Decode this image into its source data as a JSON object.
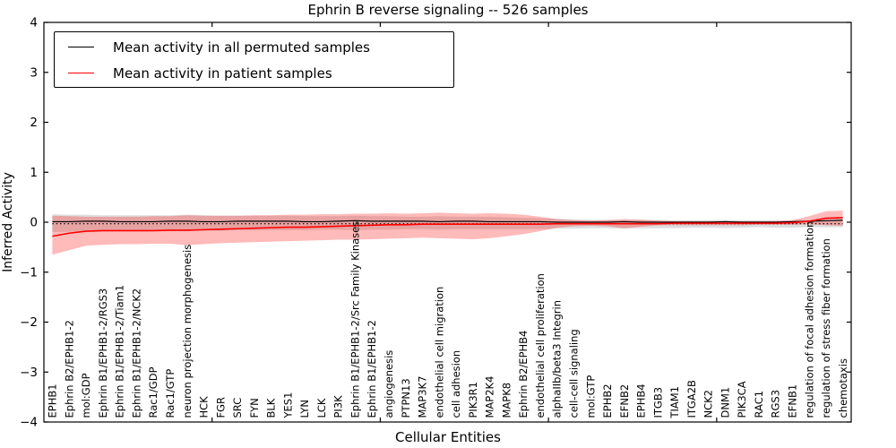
{
  "chart": {
    "title": "Ephrin B reverse signaling -- 526 samples",
    "xlabel": "Cellular Entities",
    "ylabel": "Inferred Activity",
    "legend_items": [
      {
        "label": "Mean activity in all permuted samples",
        "color": "#000000"
      },
      {
        "label": "Mean activity in patient samples",
        "color": "#ff0000"
      }
    ]
  },
  "chart_data": {
    "type": "line",
    "title": "Ephrin B reverse signaling -- 526 samples",
    "xlabel": "Cellular Entities",
    "ylabel": "Inferred Activity",
    "ylim": [
      -4,
      4
    ],
    "yticks": [
      -4,
      -3,
      -2,
      -1,
      0,
      1,
      2,
      3,
      4
    ],
    "xticks_major_values": [
      10,
      20,
      30,
      40
    ],
    "grid": false,
    "legend_position": "upper left",
    "baseline_dotted": -0.03,
    "categories": [
      "EPHB1",
      "Ephrin B2/EPHB1-2",
      "mol:GDP",
      "Ephrin B1/EPHB1-2/RGS3",
      "Ephrin B1/EPHB1-2/Tiam1",
      "Ephrin B1/EPHB1-2/NCK2",
      "Rac1/GDP",
      "Rac1/GTP",
      "neuron projection morphogenesis",
      "HCK",
      "FGR",
      "SRC",
      "FYN",
      "BLK",
      "YES1",
      "LYN",
      "LCK",
      "PI3K",
      "Ephrin B1/EPHB1-2/Src Family Kinases",
      "Ephrin B1/EPHB1-2",
      "angiogenesis",
      "PTPN13",
      "MAP3K7",
      "endothelial cell migration",
      "cell adhesion",
      "PIK3R1",
      "MAP2K4",
      "MAPK8",
      "Ephrin B2/EPHB4",
      "endothelial cell proliferation",
      "alphaIIb/beta3 Integrin",
      "cell-cell signaling",
      "mol:GTP",
      "EPHB2",
      "EFNB2",
      "EPHB4",
      "ITGB3",
      "TIAM1",
      "ITGA2B",
      "NCK2",
      "DNM1",
      "PIK3CA",
      "RAC1",
      "RGS3",
      "EFNB1",
      "regulation of focal adhesion formation",
      "regulation of stress fiber formation",
      "chemotaxis"
    ],
    "series": [
      {
        "name": "Mean activity in all permuted samples",
        "color": "#000000",
        "style": "solid",
        "values": [
          0.01,
          0.01,
          0.02,
          0.02,
          0.01,
          0.01,
          0.01,
          0.02,
          0.02,
          0.01,
          0.01,
          0.02,
          0.02,
          0.02,
          0.02,
          0.01,
          0.01,
          0.02,
          0.03,
          0.02,
          0.02,
          0.02,
          0.02,
          0.01,
          0.02,
          0.02,
          0.01,
          0.01,
          0.01,
          0.01,
          0.0,
          0.0,
          0.0,
          0.0,
          0.01,
          0.0,
          0.0,
          0.0,
          0.0,
          0.0,
          0.01,
          0.0,
          0.0,
          0.0,
          0.01,
          0.02,
          0.03,
          0.04
        ]
      },
      {
        "name": "Mean activity in patient samples",
        "color": "#ff0000",
        "style": "solid",
        "values": [
          -0.28,
          -0.22,
          -0.18,
          -0.17,
          -0.17,
          -0.17,
          -0.17,
          -0.16,
          -0.16,
          -0.15,
          -0.14,
          -0.13,
          -0.12,
          -0.11,
          -0.1,
          -0.1,
          -0.09,
          -0.08,
          -0.07,
          -0.06,
          -0.05,
          -0.05,
          -0.04,
          -0.04,
          -0.04,
          -0.04,
          -0.04,
          -0.04,
          -0.04,
          -0.04,
          -0.03,
          -0.03,
          -0.03,
          -0.03,
          -0.03,
          -0.03,
          -0.03,
          -0.02,
          -0.02,
          -0.02,
          -0.02,
          -0.02,
          -0.02,
          -0.02,
          -0.01,
          0.02,
          0.08,
          0.09
        ]
      }
    ],
    "bands": [
      {
        "name": "permuted samples range",
        "color": "#999999",
        "opacity": 0.32,
        "upper": [
          0.16,
          0.15,
          0.15,
          0.14,
          0.14,
          0.14,
          0.14,
          0.14,
          0.15,
          0.14,
          0.13,
          0.13,
          0.13,
          0.13,
          0.13,
          0.12,
          0.12,
          0.12,
          0.13,
          0.12,
          0.12,
          0.11,
          0.11,
          0.12,
          0.11,
          0.11,
          0.11,
          0.1,
          0.09,
          0.08,
          0.07,
          0.06,
          0.05,
          0.05,
          0.05,
          0.05,
          0.05,
          0.04,
          0.04,
          0.04,
          0.05,
          0.04,
          0.04,
          0.04,
          0.04,
          0.04,
          0.04,
          0.04
        ],
        "lower": [
          -0.2,
          -0.19,
          -0.18,
          -0.18,
          -0.18,
          -0.17,
          -0.17,
          -0.17,
          -0.18,
          -0.17,
          -0.17,
          -0.16,
          -0.16,
          -0.16,
          -0.16,
          -0.16,
          -0.15,
          -0.15,
          -0.16,
          -0.15,
          -0.15,
          -0.14,
          -0.14,
          -0.15,
          -0.14,
          -0.14,
          -0.14,
          -0.14,
          -0.14,
          -0.14,
          -0.13,
          -0.13,
          -0.12,
          -0.12,
          -0.13,
          -0.12,
          -0.12,
          -0.12,
          -0.11,
          -0.11,
          -0.12,
          -0.11,
          -0.1,
          -0.11,
          -0.11,
          -0.1,
          -0.1,
          -0.1
        ]
      },
      {
        "name": "patient samples range",
        "color": "#ff0000",
        "opacity": 0.27,
        "upper": [
          0.13,
          0.12,
          0.11,
          0.11,
          0.11,
          0.11,
          0.12,
          0.12,
          0.14,
          0.13,
          0.13,
          0.13,
          0.14,
          0.14,
          0.15,
          0.15,
          0.16,
          0.16,
          0.17,
          0.17,
          0.18,
          0.17,
          0.18,
          0.19,
          0.18,
          0.17,
          0.18,
          0.17,
          0.15,
          0.11,
          0.06,
          0.04,
          0.03,
          0.04,
          0.06,
          0.05,
          0.03,
          0.02,
          0.02,
          0.02,
          0.02,
          0.02,
          0.02,
          0.02,
          0.04,
          0.12,
          0.22,
          0.23
        ],
        "lower": [
          -0.65,
          -0.56,
          -0.47,
          -0.45,
          -0.44,
          -0.44,
          -0.43,
          -0.43,
          -0.46,
          -0.44,
          -0.42,
          -0.41,
          -0.4,
          -0.39,
          -0.38,
          -0.37,
          -0.36,
          -0.35,
          -0.35,
          -0.34,
          -0.33,
          -0.32,
          -0.31,
          -0.32,
          -0.33,
          -0.34,
          -0.32,
          -0.28,
          -0.24,
          -0.18,
          -0.11,
          -0.08,
          -0.07,
          -0.08,
          -0.12,
          -0.09,
          -0.06,
          -0.06,
          -0.06,
          -0.06,
          -0.06,
          -0.06,
          -0.05,
          -0.05,
          -0.05,
          -0.04,
          -0.06,
          -0.07
        ]
      }
    ]
  }
}
